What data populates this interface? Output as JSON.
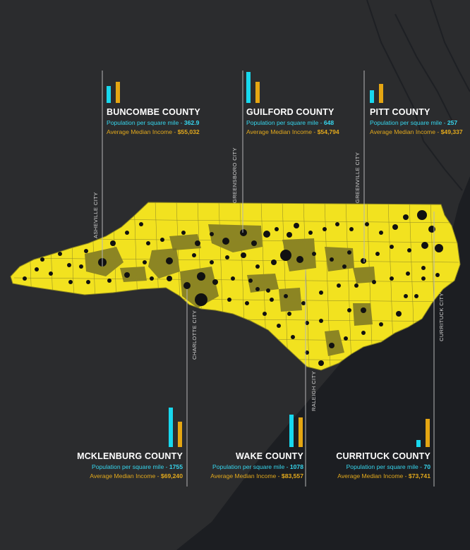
{
  "counties": [
    {
      "name": "BUNCOMBE COUNTY",
      "pop_label": "Population per square mile - ",
      "pop": "362.9",
      "inc_label": "Average Median Income - ",
      "income": "$55,032"
    },
    {
      "name": "GUILFORD COUNTY",
      "pop_label": "Population per square mile - ",
      "pop": "648",
      "inc_label": "Average Median Income - ",
      "income": "$54,794"
    },
    {
      "name": "PITT COUNTY",
      "pop_label": "Population per square mile - ",
      "pop": "257",
      "inc_label": "Average Median Income - ",
      "income": "$49,337"
    },
    {
      "name": "MCKLENBURG COUNTY",
      "pop_label": "Population per square mile - ",
      "pop": "1755",
      "inc_label": "Average Median Income - ",
      "income": "$69,240"
    },
    {
      "name": "WAKE COUNTY",
      "pop_label": "Population per square mile - ",
      "pop": "1078",
      "inc_label": "Average Median Income - ",
      "income": "$83,557"
    },
    {
      "name": "CURRITUCK COUNTY",
      "pop_label": "Population per square mile - ",
      "pop": "70",
      "inc_label": "Average Median Income - ",
      "income": "$73,741"
    }
  ],
  "cities": {
    "asheville": "ASHEVILLE CITY",
    "greensboro": "GREENSBORO CITY",
    "greenville": "GREENVILLE CITY",
    "charlotte": "CHARLOTTE CITY",
    "raleigh": "RALEIGH CITY",
    "currituck": "CURRITUCK CITY"
  },
  "colors": {
    "background": "#2b2c2e",
    "state_fill": "#f2e21f",
    "county_dark": "#7a7425",
    "population_bar": "#18d8ee",
    "income_bar": "#e5a612",
    "dot": "#111111"
  }
}
